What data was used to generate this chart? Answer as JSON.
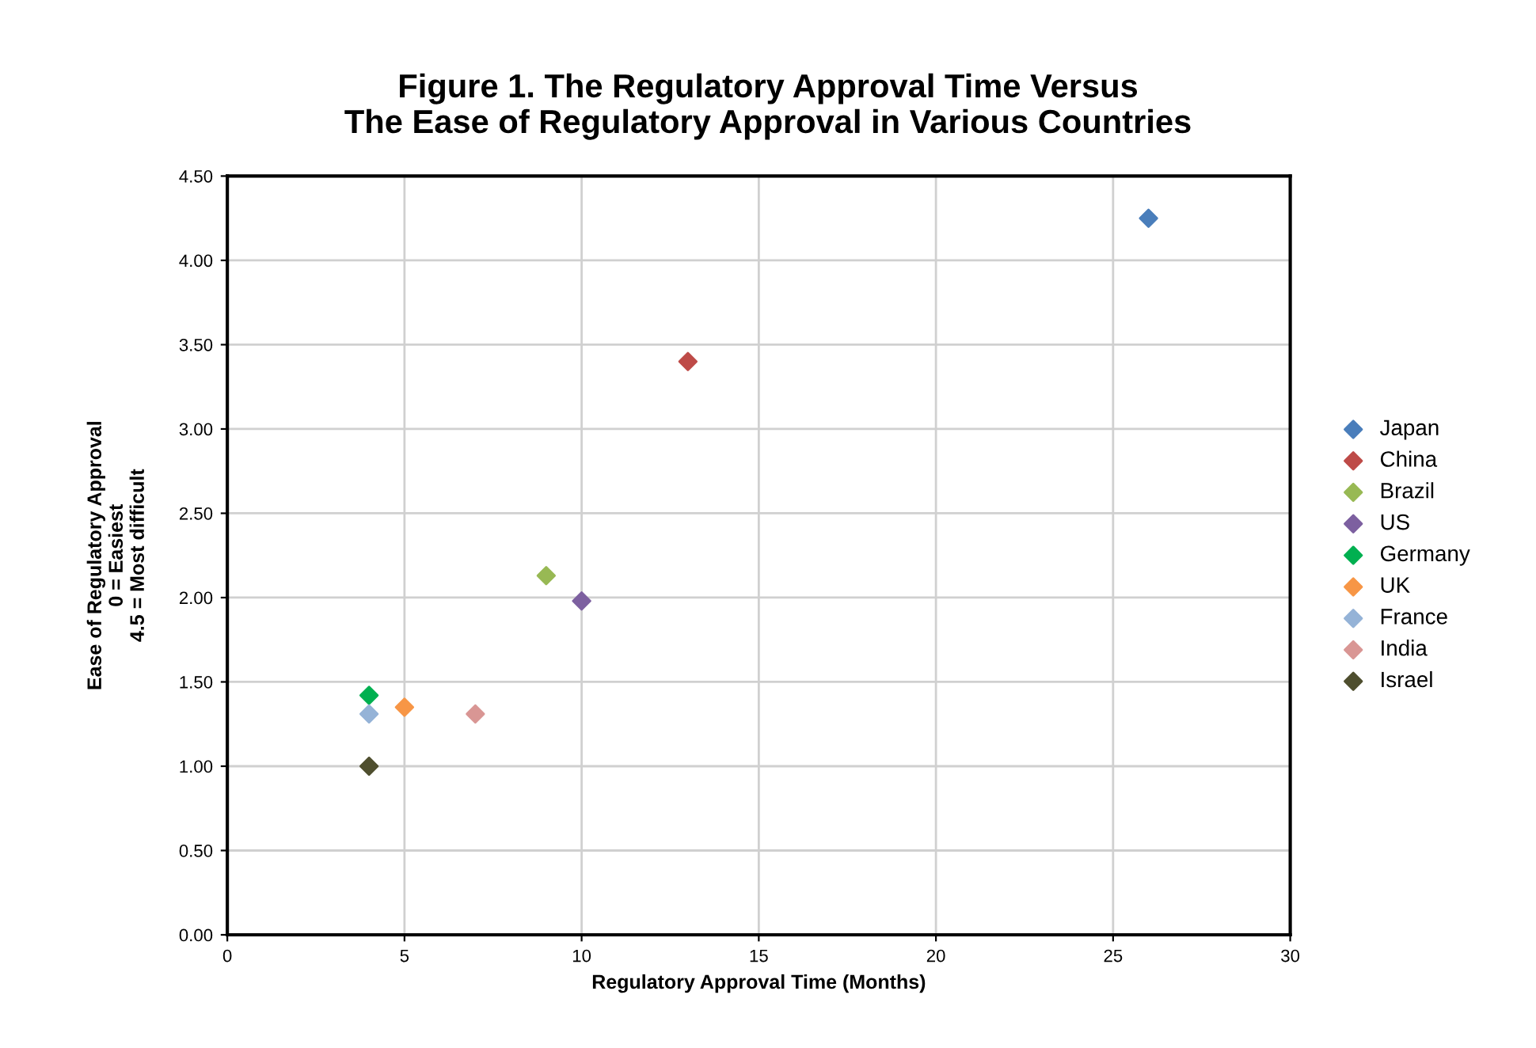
{
  "chart_data": {
    "type": "scatter",
    "title": "Figure 1. The Regulatory Approval Time Versus\nThe Ease of Regulatory Approval in Various Countries",
    "xlabel": "Regulatory Approval Time (Months)",
    "ylabel": "Ease of Regulatory Approval\n0 = Easiest\n4.5 = Most difficult",
    "series": [
      {
        "name": "Japan",
        "color": "#4a7ebb",
        "x": [
          26
        ],
        "values": [
          4.25
        ]
      },
      {
        "name": "China",
        "color": "#be4b48",
        "x": [
          13
        ],
        "values": [
          3.4
        ]
      },
      {
        "name": "Brazil",
        "color": "#98b954",
        "x": [
          9
        ],
        "values": [
          2.13
        ]
      },
      {
        "name": "US",
        "color": "#7d60a0",
        "x": [
          10
        ],
        "values": [
          1.98
        ]
      },
      {
        "name": "Germany",
        "color": "#00b050",
        "x": [
          4
        ],
        "values": [
          1.42
        ]
      },
      {
        "name": "UK",
        "color": "#f79646",
        "x": [
          5
        ],
        "values": [
          1.35
        ]
      },
      {
        "name": "France",
        "color": "#95b3d7",
        "x": [
          4
        ],
        "values": [
          1.31
        ]
      },
      {
        "name": "India",
        "color": "#d99694",
        "x": [
          7
        ],
        "values": [
          1.31
        ]
      },
      {
        "name": "Israel",
        "color": "#4f4f2f",
        "x": [
          4
        ],
        "values": [
          1.0
        ]
      }
    ],
    "xlim": [
      0,
      30
    ],
    "xticks": [
      0,
      5,
      10,
      15,
      20,
      25,
      30
    ],
    "ylim": [
      0,
      4.5
    ],
    "yticks": [
      {
        "value": 0,
        "label": "0.00"
      },
      {
        "value": 0.5,
        "label": "0.50"
      },
      {
        "value": 1,
        "label": "1.00"
      },
      {
        "value": 1.5,
        "label": "1.50"
      },
      {
        "value": 2,
        "label": "2.00"
      },
      {
        "value": 2.5,
        "label": "2.50"
      },
      {
        "value": 3,
        "label": "3.00"
      },
      {
        "value": 3.5,
        "label": "3.50"
      },
      {
        "value": 4,
        "label": "4.00"
      },
      {
        "value": 4.5,
        "label": "4.50"
      }
    ],
    "grid": true,
    "legend": "right",
    "marker": "diamond"
  }
}
